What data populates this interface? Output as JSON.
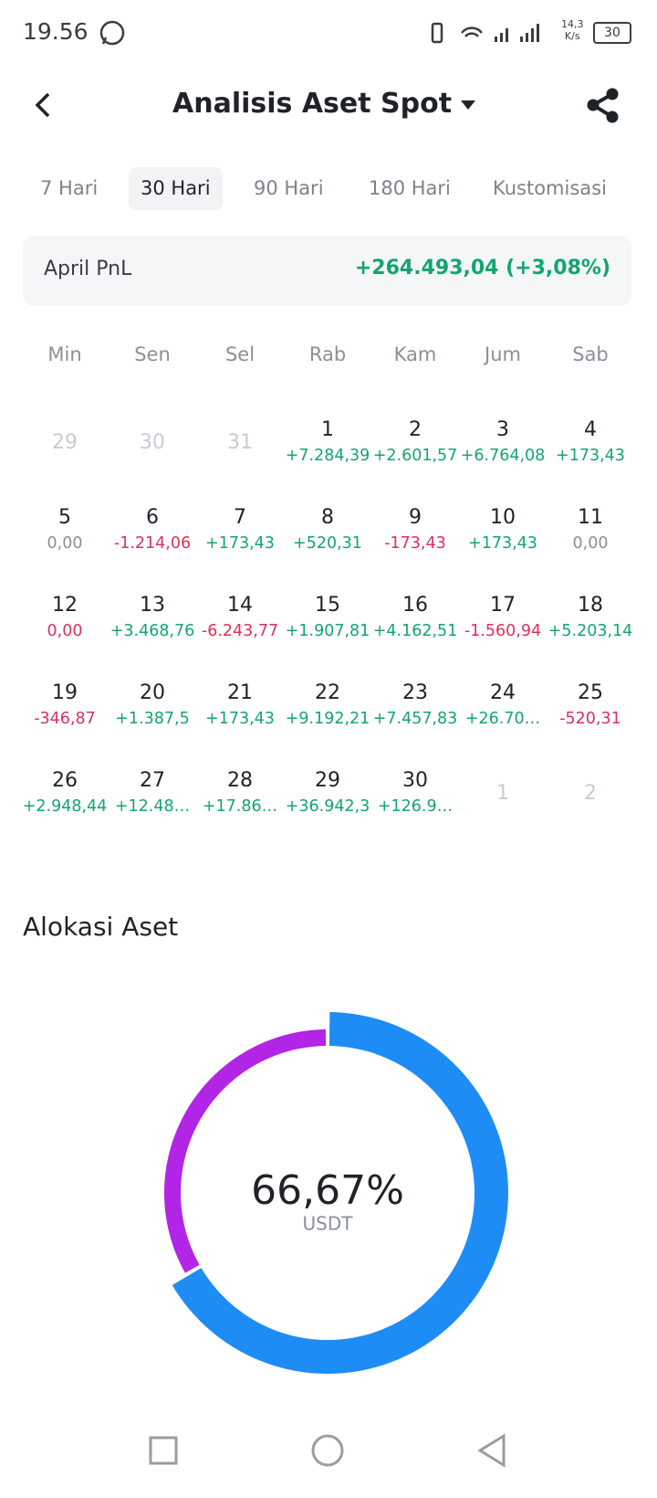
{
  "status_bar": {
    "time": "19.56",
    "speed": "14,3",
    "speed_unit": "K/s",
    "battery": "30"
  },
  "header": {
    "title": "Analisis Aset Spot"
  },
  "tabs": [
    {
      "label": "7 Hari"
    },
    {
      "label": "30 Hari",
      "active": true
    },
    {
      "label": "90 Hari"
    },
    {
      "label": "180 Hari"
    },
    {
      "label": "Kustomisasi"
    }
  ],
  "pnl": {
    "label": "April PnL",
    "value": "+264.493,04 (+3,08%)"
  },
  "calendar": {
    "weekdays": [
      "Min",
      "Sen",
      "Sel",
      "Rab",
      "Kam",
      "Jum",
      "Sab"
    ],
    "weeks": [
      [
        {
          "day": "29",
          "muted": true
        },
        {
          "day": "30",
          "muted": true
        },
        {
          "day": "31",
          "muted": true
        },
        {
          "day": "1",
          "pnl": "+7.284,39",
          "tone": "up"
        },
        {
          "day": "2",
          "pnl": "+2.601,57",
          "tone": "up"
        },
        {
          "day": "3",
          "pnl": "+6.764,08",
          "tone": "up"
        },
        {
          "day": "4",
          "pnl": "+173,43",
          "tone": "up"
        }
      ],
      [
        {
          "day": "5",
          "pnl": "0,00",
          "tone": "flat"
        },
        {
          "day": "6",
          "pnl": "-1.214,06",
          "tone": "down"
        },
        {
          "day": "7",
          "pnl": "+173,43",
          "tone": "up"
        },
        {
          "day": "8",
          "pnl": "+520,31",
          "tone": "up"
        },
        {
          "day": "9",
          "pnl": "-173,43",
          "tone": "down"
        },
        {
          "day": "10",
          "pnl": "+173,43",
          "tone": "up"
        },
        {
          "day": "11",
          "pnl": "0,00",
          "tone": "flat"
        }
      ],
      [
        {
          "day": "12",
          "pnl": "0,00",
          "tone": "down"
        },
        {
          "day": "13",
          "pnl": "+3.468,76",
          "tone": "up"
        },
        {
          "day": "14",
          "pnl": "-6.243,77",
          "tone": "down"
        },
        {
          "day": "15",
          "pnl": "+1.907,81",
          "tone": "up"
        },
        {
          "day": "16",
          "pnl": "+4.162,51",
          "tone": "up"
        },
        {
          "day": "17",
          "pnl": "-1.560,94",
          "tone": "down"
        },
        {
          "day": "18",
          "pnl": "+5.203,14",
          "tone": "up"
        }
      ],
      [
        {
          "day": "19",
          "pnl": "-346,87",
          "tone": "down"
        },
        {
          "day": "20",
          "pnl": "+1.387,5",
          "tone": "up"
        },
        {
          "day": "21",
          "pnl": "+173,43",
          "tone": "up"
        },
        {
          "day": "22",
          "pnl": "+9.192,21",
          "tone": "up"
        },
        {
          "day": "23",
          "pnl": "+7.457,83",
          "tone": "up"
        },
        {
          "day": "24",
          "pnl": "+26.70…",
          "tone": "up"
        },
        {
          "day": "25",
          "pnl": "-520,31",
          "tone": "down"
        }
      ],
      [
        {
          "day": "26",
          "pnl": "+2.948,44",
          "tone": "up"
        },
        {
          "day": "27",
          "pnl": "+12.48…",
          "tone": "up"
        },
        {
          "day": "28",
          "pnl": "+17.86…",
          "tone": "up"
        },
        {
          "day": "29",
          "pnl": "+36.942,3",
          "tone": "up"
        },
        {
          "day": "30",
          "pnl": "+126.9…",
          "tone": "up"
        },
        {
          "day": "1",
          "muted": true
        },
        {
          "day": "2",
          "muted": true
        }
      ]
    ]
  },
  "allocation": {
    "title": "Alokasi Aset",
    "donut": {
      "type": "pie",
      "segments": [
        {
          "name": "USDT",
          "value": 66.67,
          "value_label": "66,67%",
          "color": "#1e8cf5"
        },
        {
          "value": 33.33,
          "color": "#b224e6"
        }
      ]
    }
  }
}
